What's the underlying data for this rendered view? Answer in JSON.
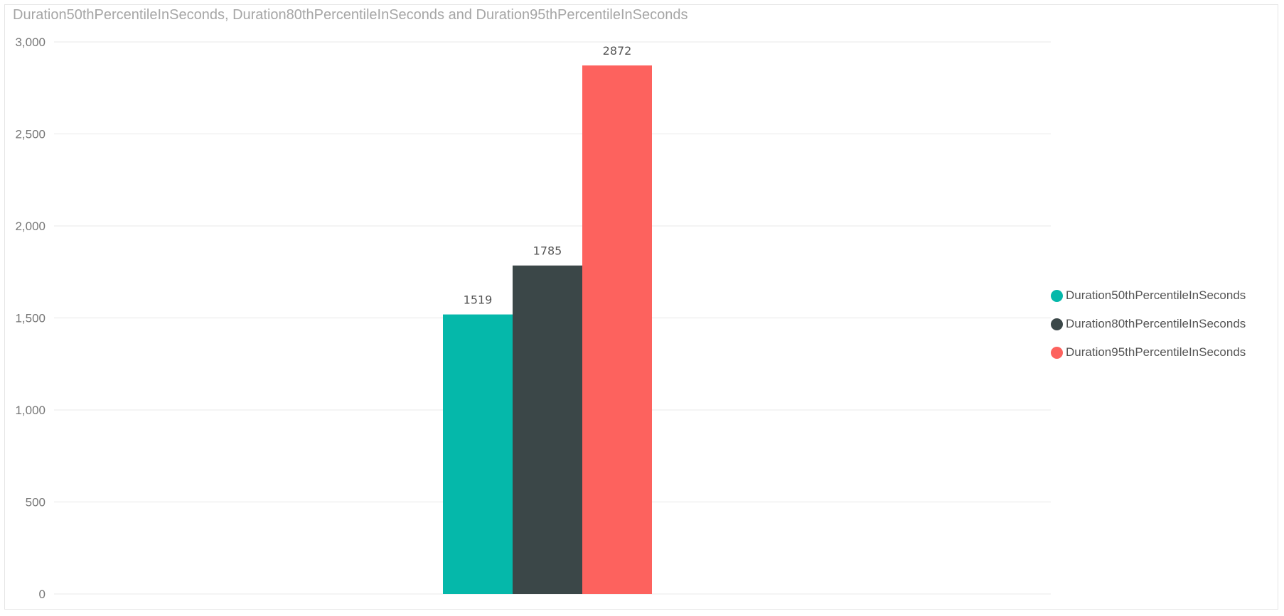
{
  "chart_data": {
    "type": "bar",
    "title": "Duration50thPercentileInSeconds, Duration80thPercentileInSeconds and Duration95thPercentileInSeconds",
    "categories": [
      ""
    ],
    "series": [
      {
        "name": "Duration50thPercentileInSeconds",
        "values": [
          1519
        ],
        "color": "#05b8aa"
      },
      {
        "name": "Duration80thPercentileInSeconds",
        "values": [
          1785
        ],
        "color": "#3b4748"
      },
      {
        "name": "Duration95thPercentileInSeconds",
        "values": [
          2872
        ],
        "color": "#fd625e"
      }
    ],
    "xlabel": "",
    "ylabel": "",
    "ylim": [
      0,
      3000
    ],
    "yticks": [
      0,
      500,
      1000,
      1500,
      2000,
      2500,
      3000
    ],
    "ytick_labels": [
      "0",
      "500",
      "1,000",
      "1,500",
      "2,000",
      "2,500",
      "3,000"
    ],
    "data_labels": [
      "1519",
      "1785",
      "2872"
    ],
    "grid": true,
    "legend": "right"
  }
}
